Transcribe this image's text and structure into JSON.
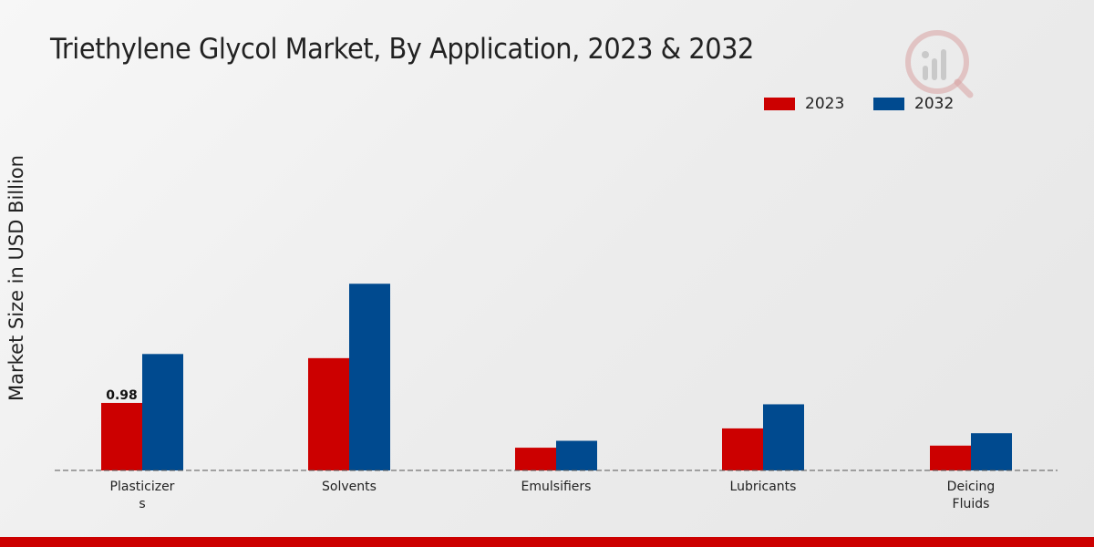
{
  "chart_data": {
    "type": "bar",
    "title": "Triethylene Glycol Market, By Application, 2023 & 2032",
    "xlabel": "",
    "ylabel": "Market Size in USD Billion",
    "categories": [
      "Plasticizers",
      "Solvents",
      "Emulsifiers",
      "Lubricants",
      "Deicing Fluids"
    ],
    "category_display": [
      [
        "Plasticizer",
        "s"
      ],
      [
        "Solvents"
      ],
      [
        "Emulsifiers"
      ],
      [
        "Lubricants"
      ],
      [
        "Deicing",
        "Fluids"
      ]
    ],
    "series": [
      {
        "name": "2023",
        "color": "#cc0000",
        "values": [
          0.98,
          1.63,
          0.33,
          0.61,
          0.36
        ]
      },
      {
        "name": "2032",
        "color": "#004a8f",
        "values": [
          1.69,
          2.71,
          0.43,
          0.96,
          0.54
        ]
      }
    ],
    "data_labels": [
      {
        "series": 0,
        "index": 0,
        "text": "0.98"
      }
    ],
    "ylim": [
      0,
      4.5
    ],
    "grid": false,
    "legend": "top-right"
  }
}
